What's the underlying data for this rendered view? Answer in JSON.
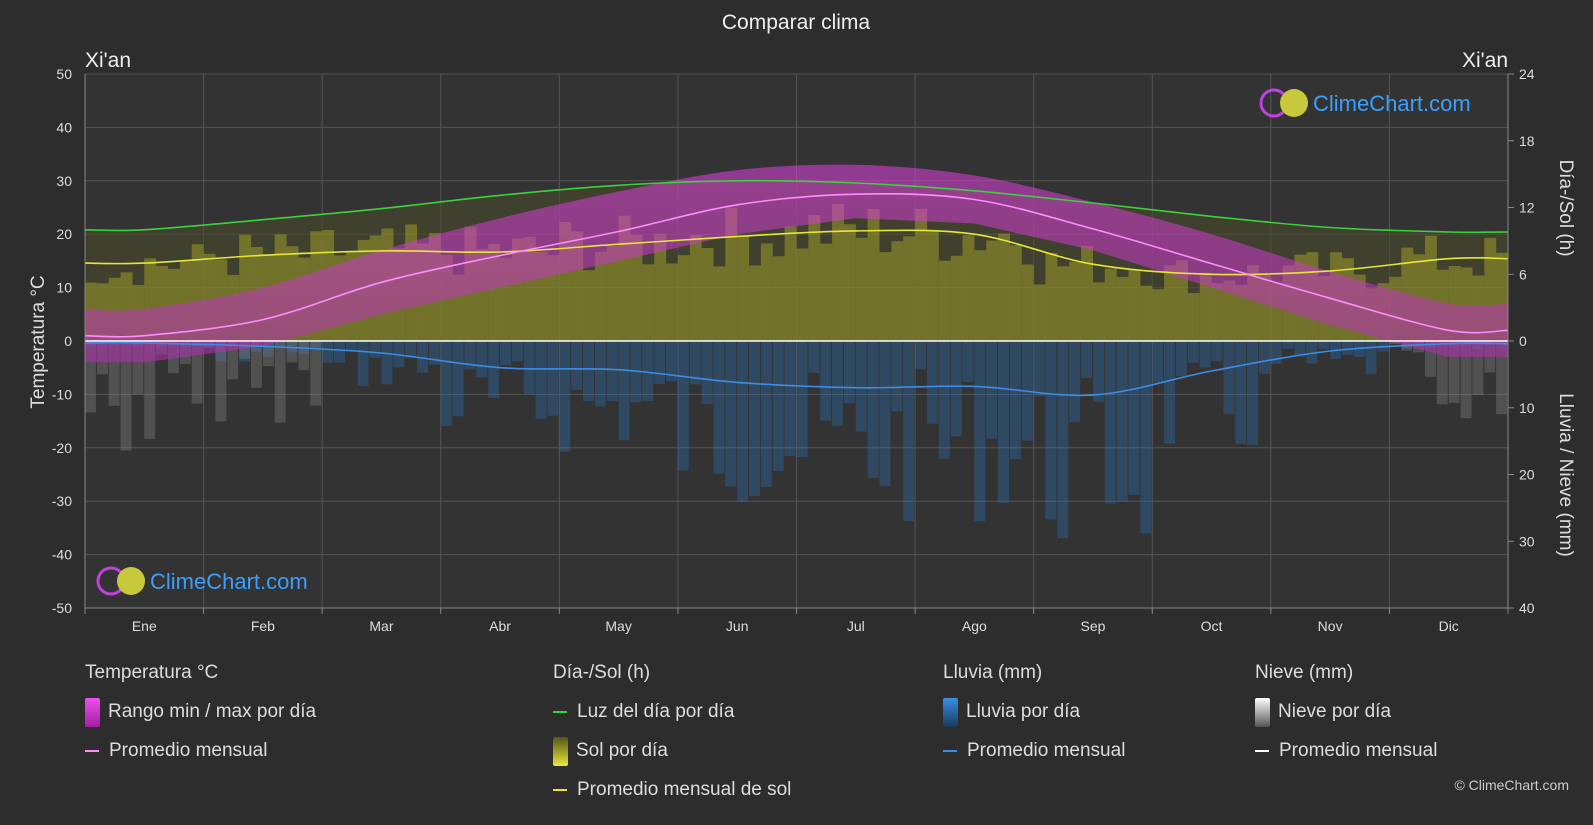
{
  "title": "Comparar clima",
  "location_left": "Xi'an",
  "location_right": "Xi'an",
  "axis_left_label": "Temperatura °C",
  "axis_right_top_label": "Día-/Sol (h)",
  "axis_right_bottom_label": "Lluvia / Nieve (mm)",
  "watermark": "ClimeChart.com",
  "copyright": "© ClimeChart.com",
  "colors": {
    "background": "#2d2d2d",
    "temp_range": "#d63ad6",
    "temp_avg": "#ff8cff",
    "daylight": "#3cd23c",
    "sunshine": "#9a9a28",
    "sun_avg": "#e6e63c",
    "rain": "#2a78c8",
    "rain_avg": "#3a8ee6",
    "snow": "#8a8a8a",
    "snow_avg": "#ffffff",
    "brand": "#3aa0ff"
  },
  "legend": {
    "temp": {
      "title": "Temperatura °C",
      "range": "Rango min / max por día",
      "avg": "Promedio mensual"
    },
    "sun": {
      "title": "Día-/Sol (h)",
      "daylight": "Luz del día por día",
      "sunshine": "Sol por día",
      "sun_avg": "Promedio mensual de sol"
    },
    "rain": {
      "title": "Lluvia (mm)",
      "per_day": "Lluvia por día",
      "avg": "Promedio mensual"
    },
    "snow": {
      "title": "Nieve (mm)",
      "per_day": "Nieve por día",
      "avg": "Promedio mensual"
    }
  },
  "chart_data": {
    "type": "area",
    "title": "Comparar clima",
    "categories": [
      "Ene",
      "Feb",
      "Mar",
      "Abr",
      "May",
      "Jun",
      "Jul",
      "Ago",
      "Sep",
      "Oct",
      "Nov",
      "Dic"
    ],
    "y_left": {
      "label": "Temperatura °C",
      "min": -50,
      "max": 50,
      "ticks": [
        50,
        40,
        30,
        20,
        10,
        0,
        -10,
        -20,
        -30,
        -40,
        -50
      ]
    },
    "y_right_top": {
      "label": "Día-/Sol (h)",
      "min": 0,
      "max": 24,
      "ticks": [
        24,
        18,
        12,
        6,
        0
      ]
    },
    "y_right_bottom": {
      "label": "Lluvia / Nieve (mm)",
      "min": 0,
      "max": 40,
      "ticks": [
        10,
        20,
        30,
        40
      ]
    },
    "grid": true,
    "series": [
      {
        "name": "Promedio mensual temperatura",
        "axis": "temp",
        "values": [
          1.0,
          4.0,
          11.0,
          16.0,
          20.5,
          25.5,
          27.5,
          26.5,
          21.0,
          14.5,
          8.0,
          2.0
        ]
      },
      {
        "name": "Temp máx media",
        "axis": "temp",
        "values": [
          6,
          10,
          17,
          23,
          28,
          32,
          33,
          31,
          26,
          20,
          13,
          7
        ]
      },
      {
        "name": "Temp mín media",
        "axis": "temp",
        "values": [
          -4,
          -1,
          5,
          10,
          15,
          20,
          23,
          22,
          17,
          10,
          3,
          -3
        ]
      },
      {
        "name": "Luz del día por día",
        "axis": "sun",
        "values": [
          10.0,
          10.9,
          11.9,
          13.1,
          14.0,
          14.4,
          14.2,
          13.5,
          12.4,
          11.2,
          10.2,
          9.8
        ]
      },
      {
        "name": "Sol por día",
        "axis": "sun",
        "values": [
          7.0,
          7.7,
          8.1,
          8.0,
          8.7,
          9.4,
          9.9,
          9.6,
          6.9,
          6.0,
          6.3,
          7.4
        ]
      },
      {
        "name": "Lluvia promedio mensual",
        "axis": "precip",
        "values": [
          0.3,
          0.8,
          1.8,
          4.0,
          4.3,
          6.2,
          7.0,
          6.8,
          8.1,
          4.5,
          1.5,
          0.4
        ]
      },
      {
        "name": "Nieve promedio mensual",
        "axis": "precip",
        "values": [
          0.3,
          0.2,
          0,
          0,
          0,
          0,
          0,
          0,
          0,
          0,
          0,
          0.2
        ]
      }
    ]
  }
}
